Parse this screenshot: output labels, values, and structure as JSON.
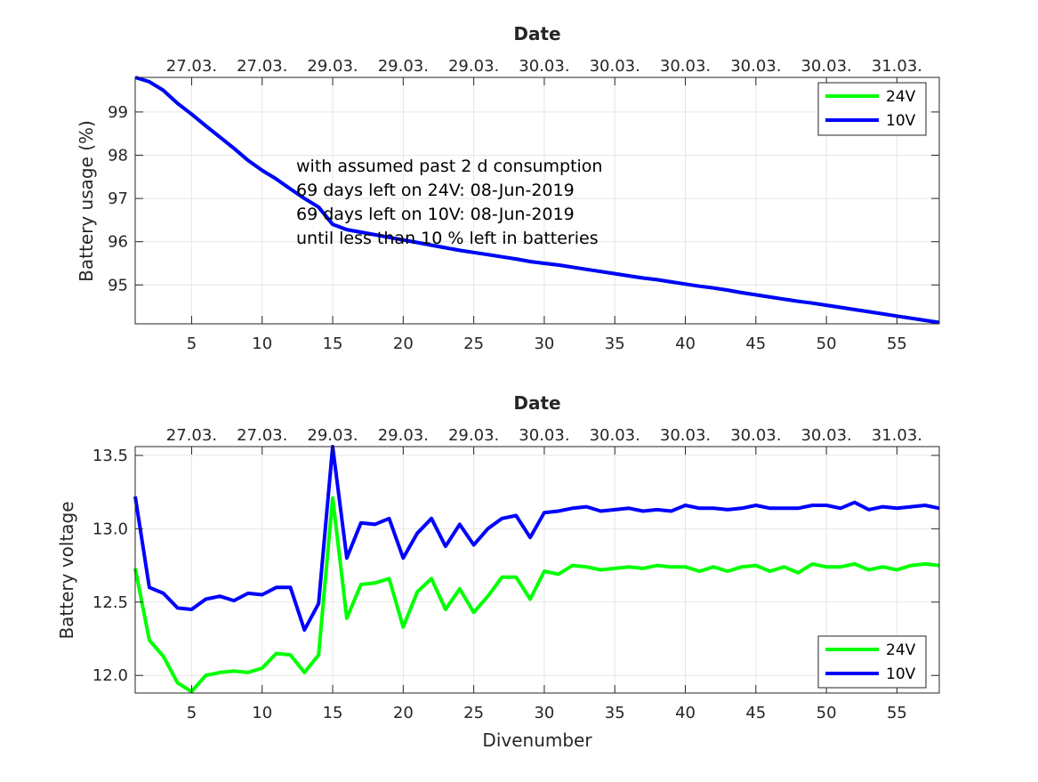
{
  "colors": {
    "series_24V": "#00ff00",
    "series_10V": "#0000ff",
    "axis": "#262626",
    "grid": "#e6e6e6"
  },
  "chart_data": [
    {
      "type": "line",
      "title": "Date",
      "xlabel": "",
      "ylabel": "Battery usage (%)",
      "xlim": [
        1,
        58
      ],
      "ylim": [
        94.1,
        99.8
      ],
      "grid": true,
      "legend_position": "top-right",
      "xticks": [
        5,
        10,
        15,
        20,
        25,
        30,
        35,
        40,
        45,
        50,
        55
      ],
      "yticks": [
        95,
        96,
        97,
        98,
        99
      ],
      "top_tick_labels": [
        "27.03.",
        "27.03.",
        "29.03.",
        "29.03.",
        "29.03.",
        "30.03.",
        "30.03.",
        "30.03.",
        "30.03.",
        "30.03.",
        "31.03."
      ],
      "annotation": [
        "with assumed past 2 d consumption",
        "69 days left on 24V: 08-Jun-2019",
        "69 days left on 10V: 08-Jun-2019",
        "until less than 10 % left in batteries"
      ],
      "x": [
        1,
        2,
        3,
        4,
        5,
        6,
        7,
        8,
        9,
        10,
        11,
        12,
        13,
        14,
        15,
        16,
        17,
        18,
        19,
        20,
        21,
        22,
        23,
        24,
        25,
        26,
        27,
        28,
        29,
        30,
        31,
        32,
        33,
        34,
        35,
        36,
        37,
        38,
        39,
        40,
        41,
        42,
        43,
        44,
        45,
        46,
        47,
        48,
        49,
        50,
        51,
        52,
        53,
        54,
        55,
        56,
        57,
        58
      ],
      "series": [
        {
          "name": "24V",
          "color": "#00ff00",
          "values": [
            99.8,
            99.7,
            99.5,
            99.2,
            98.95,
            98.68,
            98.42,
            98.16,
            97.88,
            97.65,
            97.45,
            97.22,
            97.0,
            96.8,
            96.4,
            96.28,
            96.22,
            96.16,
            96.1,
            96.04,
            95.98,
            95.92,
            95.86,
            95.8,
            95.75,
            95.7,
            95.65,
            95.6,
            95.54,
            95.5,
            95.46,
            95.41,
            95.36,
            95.31,
            95.26,
            95.21,
            95.16,
            95.12,
            95.07,
            95.02,
            94.97,
            94.93,
            94.88,
            94.82,
            94.77,
            94.72,
            94.67,
            94.62,
            94.58,
            94.53,
            94.48,
            94.43,
            94.38,
            94.33,
            94.28,
            94.23,
            94.18,
            94.13
          ]
        },
        {
          "name": "10V",
          "color": "#0000ff",
          "values": [
            99.8,
            99.7,
            99.5,
            99.2,
            98.95,
            98.68,
            98.42,
            98.16,
            97.88,
            97.65,
            97.45,
            97.22,
            97.0,
            96.8,
            96.4,
            96.28,
            96.22,
            96.16,
            96.1,
            96.04,
            95.98,
            95.92,
            95.86,
            95.8,
            95.75,
            95.7,
            95.65,
            95.6,
            95.54,
            95.5,
            95.46,
            95.41,
            95.36,
            95.31,
            95.26,
            95.21,
            95.16,
            95.12,
            95.07,
            95.02,
            94.97,
            94.93,
            94.88,
            94.82,
            94.77,
            94.72,
            94.67,
            94.62,
            94.58,
            94.53,
            94.48,
            94.43,
            94.38,
            94.33,
            94.28,
            94.23,
            94.18,
            94.13
          ]
        }
      ]
    },
    {
      "type": "line",
      "title": "Date",
      "xlabel": "Divenumber",
      "ylabel": "Battery voltage",
      "xlim": [
        1,
        58
      ],
      "ylim": [
        11.88,
        13.56
      ],
      "grid": true,
      "legend_position": "bottom-right",
      "xticks": [
        5,
        10,
        15,
        20,
        25,
        30,
        35,
        40,
        45,
        50,
        55
      ],
      "yticks": [
        12,
        12.5,
        13,
        13.5
      ],
      "top_tick_labels": [
        "27.03.",
        "27.03.",
        "29.03.",
        "29.03.",
        "29.03.",
        "30.03.",
        "30.03.",
        "30.03.",
        "30.03.",
        "30.03.",
        "31.03."
      ],
      "x": [
        1,
        2,
        3,
        4,
        5,
        6,
        7,
        8,
        9,
        10,
        11,
        12,
        13,
        14,
        15,
        16,
        17,
        18,
        19,
        20,
        21,
        22,
        23,
        24,
        25,
        26,
        27,
        28,
        29,
        30,
        31,
        32,
        33,
        34,
        35,
        36,
        37,
        38,
        39,
        40,
        41,
        42,
        43,
        44,
        45,
        46,
        47,
        48,
        49,
        50,
        51,
        52,
        53,
        54,
        55,
        56,
        57,
        58
      ],
      "series": [
        {
          "name": "24V",
          "color": "#00ff00",
          "values": [
            12.73,
            12.24,
            12.13,
            11.95,
            11.89,
            12.0,
            12.02,
            12.03,
            12.02,
            12.05,
            12.15,
            12.14,
            12.02,
            12.14,
            13.21,
            12.39,
            12.62,
            12.63,
            12.66,
            12.33,
            12.57,
            12.66,
            12.45,
            12.59,
            12.43,
            12.54,
            12.67,
            12.67,
            12.52,
            12.71,
            12.69,
            12.75,
            12.74,
            12.72,
            12.73,
            12.74,
            12.73,
            12.75,
            12.74,
            12.74,
            12.71,
            12.74,
            12.71,
            12.74,
            12.75,
            12.71,
            12.74,
            12.7,
            12.76,
            12.74,
            12.74,
            12.76,
            12.72,
            12.74,
            12.72,
            12.75,
            12.76,
            12.75
          ]
        },
        {
          "name": "10V",
          "color": "#0000ff",
          "values": [
            13.22,
            12.6,
            12.56,
            12.46,
            12.45,
            12.52,
            12.54,
            12.51,
            12.56,
            12.55,
            12.6,
            12.6,
            12.31,
            12.49,
            13.56,
            12.8,
            13.04,
            13.03,
            13.07,
            12.8,
            12.97,
            13.07,
            12.88,
            13.03,
            12.89,
            13.0,
            13.07,
            13.09,
            12.94,
            13.11,
            13.12,
            13.14,
            13.15,
            13.12,
            13.13,
            13.14,
            13.12,
            13.13,
            13.12,
            13.16,
            13.14,
            13.14,
            13.13,
            13.14,
            13.16,
            13.14,
            13.14,
            13.14,
            13.16,
            13.16,
            13.14,
            13.18,
            13.13,
            13.15,
            13.14,
            13.15,
            13.16,
            13.14
          ]
        }
      ]
    }
  ]
}
